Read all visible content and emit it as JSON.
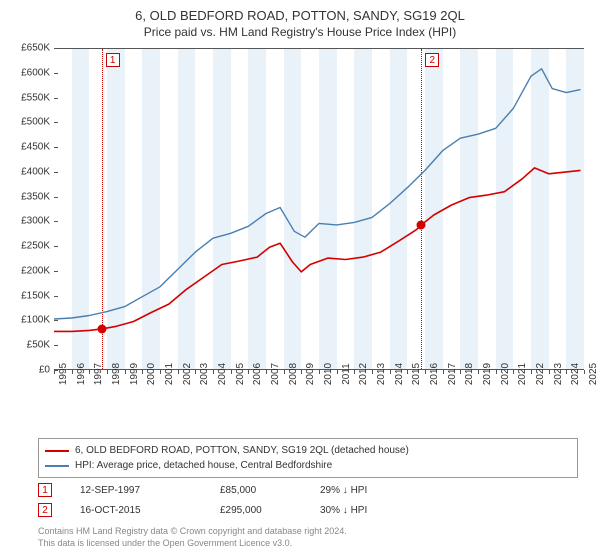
{
  "title": "6, OLD BEDFORD ROAD, POTTON, SANDY, SG19 2QL",
  "subtitle": "Price paid vs. HM Land Registry's House Price Index (HPI)",
  "chart": {
    "type": "line",
    "background_color": "#ffffff",
    "band_color": "#e9f2f9",
    "axis_color": "#555555",
    "text_color": "#333333",
    "ylim": [
      0,
      650000
    ],
    "ytick_step": 50000,
    "y_prefix": "£",
    "y_suffix": "K",
    "y_divisor": 1000,
    "x_years": [
      1995,
      1996,
      1997,
      1998,
      1999,
      2000,
      2001,
      2002,
      2003,
      2004,
      2005,
      2006,
      2007,
      2008,
      2009,
      2010,
      2011,
      2012,
      2013,
      2014,
      2015,
      2016,
      2017,
      2018,
      2019,
      2020,
      2021,
      2022,
      2023,
      2024,
      2025
    ],
    "series": [
      {
        "name": "property",
        "label": "6, OLD BEDFORD ROAD, POTTON, SANDY, SG19 2QL (detached house)",
        "color": "#d40000",
        "line_width": 1.6,
        "data": [
          [
            1995.0,
            80000
          ],
          [
            1996.0,
            80000
          ],
          [
            1997.0,
            82000
          ],
          [
            1997.7,
            85000
          ],
          [
            1998.5,
            90000
          ],
          [
            1999.5,
            100000
          ],
          [
            2000.5,
            118000
          ],
          [
            2001.5,
            135000
          ],
          [
            2002.5,
            165000
          ],
          [
            2003.5,
            190000
          ],
          [
            2004.5,
            215000
          ],
          [
            2005.5,
            222000
          ],
          [
            2006.5,
            230000
          ],
          [
            2007.2,
            250000
          ],
          [
            2007.8,
            258000
          ],
          [
            2008.5,
            220000
          ],
          [
            2009.0,
            200000
          ],
          [
            2009.5,
            215000
          ],
          [
            2010.5,
            228000
          ],
          [
            2011.5,
            225000
          ],
          [
            2012.5,
            230000
          ],
          [
            2013.5,
            240000
          ],
          [
            2014.5,
            262000
          ],
          [
            2015.5,
            285000
          ],
          [
            2015.79,
            295000
          ],
          [
            2016.5,
            315000
          ],
          [
            2017.5,
            335000
          ],
          [
            2018.5,
            350000
          ],
          [
            2019.5,
            355000
          ],
          [
            2020.5,
            362000
          ],
          [
            2021.5,
            388000
          ],
          [
            2022.2,
            410000
          ],
          [
            2023.0,
            398000
          ],
          [
            2024.0,
            402000
          ],
          [
            2024.8,
            405000
          ]
        ]
      },
      {
        "name": "hpi",
        "label": "HPI: Average price, detached house, Central Bedfordshire",
        "color": "#4a7fb0",
        "line_width": 1.4,
        "data": [
          [
            1995.0,
            105000
          ],
          [
            1996.0,
            107000
          ],
          [
            1997.0,
            112000
          ],
          [
            1998.0,
            120000
          ],
          [
            1999.0,
            130000
          ],
          [
            2000.0,
            150000
          ],
          [
            2001.0,
            170000
          ],
          [
            2002.0,
            205000
          ],
          [
            2003.0,
            240000
          ],
          [
            2004.0,
            268000
          ],
          [
            2005.0,
            278000
          ],
          [
            2006.0,
            292000
          ],
          [
            2007.0,
            318000
          ],
          [
            2007.8,
            330000
          ],
          [
            2008.6,
            282000
          ],
          [
            2009.2,
            270000
          ],
          [
            2010.0,
            298000
          ],
          [
            2011.0,
            295000
          ],
          [
            2012.0,
            300000
          ],
          [
            2013.0,
            310000
          ],
          [
            2014.0,
            338000
          ],
          [
            2015.0,
            370000
          ],
          [
            2016.0,
            405000
          ],
          [
            2017.0,
            445000
          ],
          [
            2018.0,
            470000
          ],
          [
            2019.0,
            478000
          ],
          [
            2020.0,
            490000
          ],
          [
            2021.0,
            530000
          ],
          [
            2022.0,
            595000
          ],
          [
            2022.6,
            610000
          ],
          [
            2023.2,
            570000
          ],
          [
            2024.0,
            562000
          ],
          [
            2024.8,
            568000
          ]
        ]
      }
    ],
    "sale_markers": [
      {
        "n": "1",
        "year": 1997.7,
        "price": 85000,
        "dot_color": "#d40000",
        "line_color": "#d40000"
      },
      {
        "n": "2",
        "year": 2015.79,
        "price": 295000,
        "dot_color": "#d40000",
        "line_color": "#d40000"
      }
    ]
  },
  "legend": {
    "border_color": "#999999"
  },
  "sales": [
    {
      "n": "1",
      "date": "12-SEP-1997",
      "price": "£85,000",
      "delta": "29% ↓ HPI"
    },
    {
      "n": "2",
      "date": "16-OCT-2015",
      "price": "£295,000",
      "delta": "30% ↓ HPI"
    }
  ],
  "attribution": {
    "line1": "Contains HM Land Registry data © Crown copyright and database right 2024.",
    "line2": "This data is licensed under the Open Government Licence v3.0."
  }
}
